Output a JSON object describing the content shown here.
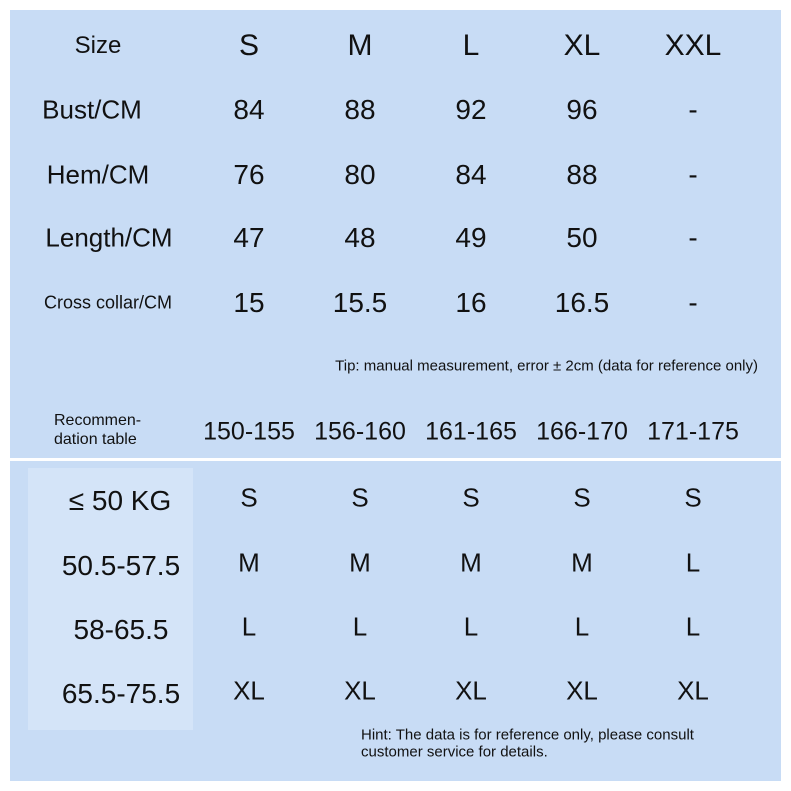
{
  "size_table": {
    "header": [
      "Size",
      "S",
      "M",
      "L",
      "XL",
      "XXL"
    ],
    "rows": [
      [
        "Bust/CM",
        "84",
        "88",
        "92",
        "96",
        "-"
      ],
      [
        "Hem/CM",
        "76",
        "80",
        "84",
        "88",
        "-"
      ],
      [
        "Length/CM",
        "47",
        "48",
        "49",
        "50",
        "-"
      ],
      [
        "Cross collar/CM",
        "15",
        "15.5",
        "16",
        "16.5",
        "-"
      ]
    ],
    "tip": "Tip: manual measurement, error ± 2cm (data for reference only)"
  },
  "recommendation_table": {
    "header_label": [
      "Recommen-",
      "dation table"
    ],
    "header": [
      "150-155",
      "156-160",
      "161-165",
      "166-170",
      "171-175"
    ],
    "rows": [
      [
        "≤ 50 KG",
        "S",
        "S",
        "S",
        "S",
        "S"
      ],
      [
        "50.5-57.5",
        "M",
        "M",
        "M",
        "M",
        "L"
      ],
      [
        "58-65.5",
        "L",
        "L",
        "L",
        "L",
        "L"
      ],
      [
        "65.5-75.5",
        "XL",
        "XL",
        "XL",
        "XL",
        "XL"
      ]
    ],
    "hint": [
      "Hint: The data is for reference only, please consult",
      "customer service for details."
    ]
  }
}
